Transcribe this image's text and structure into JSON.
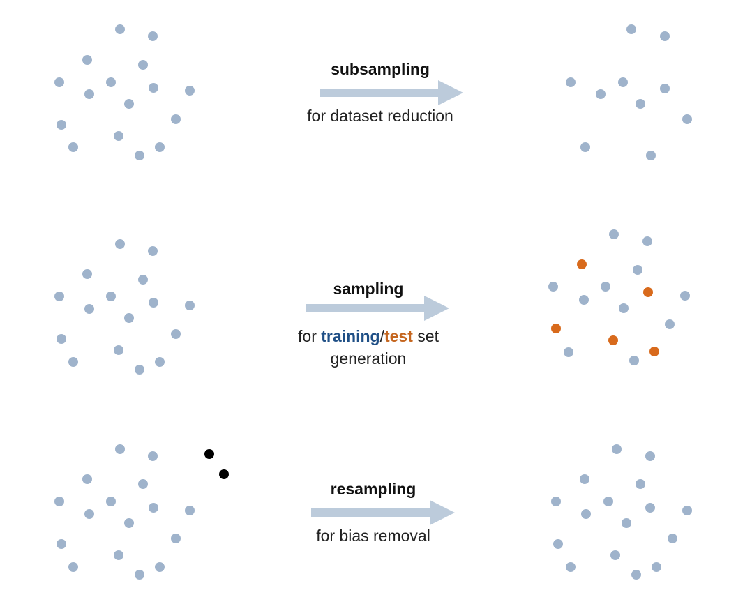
{
  "colors": {
    "point": "#9fb3cb",
    "test_point": "#d86a1c",
    "outlier_point": "#000000",
    "arrow": "#bccbdb",
    "training_text": "#1f4f86",
    "test_text": "#c5661f"
  },
  "rows": [
    {
      "title": "subsampling",
      "subtitle": "for dataset reduction"
    },
    {
      "title": "sampling",
      "subtitle_prefix": "for ",
      "subtitle_training": "training",
      "subtitle_slash": "/",
      "subtitle_test": "test",
      "subtitle_suffix": " set",
      "subtitle_line2": "generation"
    },
    {
      "title": "resampling",
      "subtitle": "for bias removal"
    }
  ]
}
